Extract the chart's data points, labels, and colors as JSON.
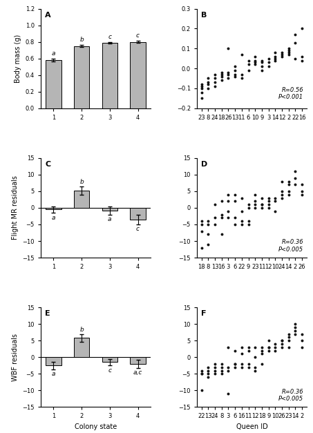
{
  "panel_A": {
    "label": "A",
    "bar_values": [
      0.58,
      0.75,
      0.79,
      0.8
    ],
    "bar_errors": [
      0.015,
      0.012,
      0.01,
      0.01
    ],
    "bar_labels": [
      "a",
      "b",
      "c",
      "c"
    ],
    "x": [
      1,
      2,
      3,
      4
    ],
    "ylabel": "Body mass (g)",
    "ylim": [
      0,
      1.2
    ],
    "yticks": [
      0,
      0.2,
      0.4,
      0.6,
      0.8,
      1.0,
      1.2
    ],
    "xlabel": "Colony state"
  },
  "panel_B": {
    "label": "B",
    "xlabel_ticks": [
      "23",
      "8",
      "24",
      "18",
      "26",
      "13",
      "11",
      "6",
      "10",
      "9",
      "3",
      "14",
      "12",
      "2",
      "22",
      "16"
    ],
    "ylim": [
      -0.2,
      0.3
    ],
    "yticks": [
      -0.2,
      -0.1,
      0.0,
      0.1,
      0.2,
      0.3
    ],
    "annotation": "R=0.56\nP<0.001",
    "scatter_x": [
      1,
      1,
      1,
      1,
      1,
      2,
      2,
      2,
      2,
      3,
      3,
      3,
      3,
      4,
      4,
      4,
      4,
      5,
      5,
      5,
      5,
      6,
      6,
      6,
      6,
      7,
      7,
      7,
      8,
      8,
      8,
      9,
      9,
      9,
      9,
      10,
      10,
      10,
      10,
      11,
      11,
      11,
      12,
      12,
      12,
      12,
      13,
      13,
      13,
      14,
      14,
      14,
      14,
      15,
      15,
      15,
      16,
      16,
      16
    ],
    "scatter_y": [
      -0.15,
      -0.12,
      -0.1,
      -0.09,
      -0.08,
      -0.1,
      -0.08,
      -0.07,
      -0.05,
      -0.09,
      -0.07,
      -0.05,
      -0.03,
      -0.06,
      -0.04,
      -0.03,
      -0.02,
      -0.05,
      -0.03,
      -0.02,
      0.1,
      -0.04,
      -0.03,
      -0.01,
      0.01,
      -0.05,
      -0.03,
      0.07,
      -0.01,
      0.02,
      0.04,
      0.02,
      0.03,
      0.04,
      0.06,
      -0.01,
      0.01,
      0.03,
      0.04,
      0.01,
      0.03,
      0.05,
      0.04,
      0.05,
      0.06,
      0.08,
      0.06,
      0.07,
      0.08,
      0.07,
      0.08,
      0.09,
      0.1,
      0.13,
      0.17,
      0.05,
      0.04,
      0.06,
      0.2
    ]
  },
  "panel_C": {
    "label": "C",
    "bar_values": [
      -0.5,
      5.2,
      -0.8,
      -3.5
    ],
    "bar_errors": [
      1.0,
      1.2,
      1.2,
      1.5
    ],
    "bar_labels": [
      "a",
      "b",
      "a",
      "c"
    ],
    "x": [
      1,
      2,
      3,
      4
    ],
    "ylabel": "Flight MR residuals",
    "ylim": [
      -15,
      15
    ],
    "yticks": [
      -15,
      -10,
      -5,
      0,
      5,
      10,
      15
    ],
    "xlabel": "Colony state"
  },
  "panel_D": {
    "label": "D",
    "xlabel_ticks": [
      "18",
      "8",
      "13",
      "16",
      "3",
      "6",
      "22",
      "9",
      "23",
      "11",
      "12",
      "10",
      "24",
      "14",
      "2",
      "26"
    ],
    "ylim": [
      -15,
      15
    ],
    "yticks": [
      -15,
      -10,
      -5,
      0,
      5,
      10,
      15
    ],
    "annotation": "R=0.36\nP<0.005",
    "scatter_x": [
      1,
      1,
      1,
      1,
      2,
      2,
      2,
      2,
      3,
      3,
      3,
      4,
      4,
      4,
      4,
      5,
      5,
      5,
      5,
      6,
      6,
      6,
      6,
      7,
      7,
      7,
      7,
      8,
      8,
      8,
      8,
      9,
      9,
      9,
      9,
      10,
      10,
      10,
      10,
      11,
      11,
      11,
      11,
      12,
      12,
      12,
      13,
      13,
      13,
      13,
      14,
      14,
      14,
      14,
      15,
      15,
      15,
      16,
      16,
      16
    ],
    "scatter_y": [
      -12,
      -7,
      -5,
      -4,
      -11,
      -8,
      -5,
      -4,
      -5,
      -3,
      1,
      2,
      -8,
      -3,
      -2,
      4,
      -3,
      -1,
      2,
      -5,
      -3,
      2,
      4,
      -5,
      -4,
      -1,
      3,
      -5,
      -4,
      0,
      1,
      0,
      1,
      2,
      4,
      0,
      1,
      1,
      3,
      0,
      1,
      2,
      3,
      -1,
      2,
      3,
      3,
      4,
      5,
      8,
      4,
      5,
      7,
      8,
      9,
      11,
      7,
      5,
      7,
      4
    ]
  },
  "panel_E": {
    "label": "E",
    "bar_values": [
      -2.5,
      5.8,
      -1.5,
      -2.0
    ],
    "bar_errors": [
      1.2,
      1.2,
      1.0,
      1.2
    ],
    "bar_labels": [
      "a",
      "b",
      "c",
      "a,c"
    ],
    "x": [
      1,
      2,
      3,
      4
    ],
    "ylabel": "WBF residuals",
    "ylim": [
      -15,
      15
    ],
    "yticks": [
      -15,
      -10,
      -5,
      0,
      5,
      10,
      15
    ],
    "xlabel": "Colony state"
  },
  "panel_F": {
    "label": "F",
    "xlabel_ticks": [
      "22",
      "13",
      "24",
      "8",
      "3",
      "6",
      "16",
      "11",
      "12",
      "18",
      "9",
      "10",
      "26",
      "23",
      "14",
      "2"
    ],
    "ylim": [
      -15,
      15
    ],
    "yticks": [
      -15,
      -10,
      -5,
      0,
      5,
      10,
      15
    ],
    "annotation": "R=0.36\nP<0.005",
    "scatter_x": [
      1,
      1,
      1,
      1,
      2,
      2,
      2,
      2,
      3,
      3,
      3,
      3,
      4,
      4,
      4,
      4,
      5,
      5,
      5,
      5,
      6,
      6,
      6,
      6,
      7,
      7,
      7,
      7,
      8,
      8,
      8,
      8,
      9,
      9,
      9,
      9,
      10,
      10,
      10,
      10,
      11,
      11,
      11,
      11,
      12,
      12,
      12,
      13,
      13,
      13,
      13,
      14,
      14,
      14,
      14,
      15,
      15,
      15,
      15,
      16,
      16,
      16
    ],
    "scatter_y": [
      -10,
      -5,
      -5,
      -4,
      -6,
      -5,
      -4,
      -3,
      -5,
      -4,
      -3,
      -2,
      -5,
      -4,
      -3,
      -2,
      -11,
      -4,
      -3,
      3,
      -3,
      -2,
      -2,
      2,
      -3,
      -2,
      1,
      3,
      -3,
      -2,
      2,
      3,
      -4,
      -3,
      0,
      3,
      -2,
      1,
      2,
      3,
      2,
      3,
      3,
      5,
      2,
      3,
      4,
      3,
      4,
      5,
      5,
      3,
      5,
      6,
      7,
      7,
      8,
      9,
      10,
      3,
      5,
      7
    ],
    "xlabel": "Queen ID"
  },
  "bar_color": "#b5b5b5",
  "scatter_color": "#111111"
}
